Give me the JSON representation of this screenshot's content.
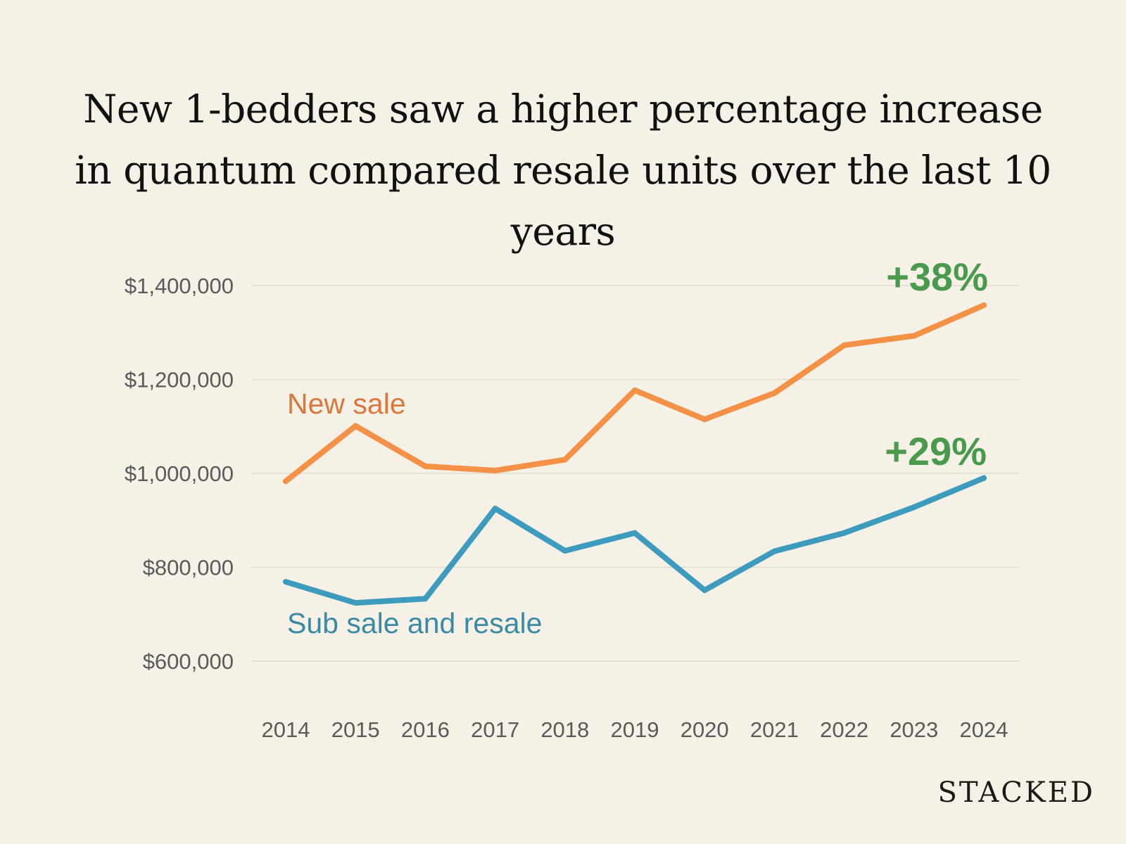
{
  "brand": "STACKED",
  "chart_data": {
    "type": "line",
    "title": "New 1-bedders saw a higher percentage increase in quantum compared resale units over the last 10 years",
    "xlabel": "",
    "ylabel": "",
    "x": [
      "2014",
      "2015",
      "2016",
      "2017",
      "2018",
      "2019",
      "2020",
      "2021",
      "2022",
      "2023",
      "2024"
    ],
    "ylim": [
      600000,
      1400000
    ],
    "yticks": [
      600000,
      800000,
      1000000,
      1200000,
      1400000
    ],
    "ytick_labels": [
      "$600,000",
      "$800,000",
      "$1,000,000",
      "$1,200,000",
      "$1,400,000"
    ],
    "grid": true,
    "legend": "none",
    "series": [
      {
        "name": "New sale",
        "color": "#f59147",
        "label_color": "#d9773c",
        "values": [
          983000,
          1101000,
          1015000,
          1006000,
          1029000,
          1177000,
          1115000,
          1171000,
          1273000,
          1293000,
          1358000
        ],
        "annotation": "+38%"
      },
      {
        "name": "Sub sale and resale",
        "color": "#3d9bbd",
        "label_color": "#3a8aa6",
        "values": [
          769000,
          724000,
          733000,
          925000,
          835000,
          873000,
          751000,
          834000,
          873000,
          928000,
          990000
        ],
        "annotation": "+29%"
      }
    ],
    "annotation_color": "#4a9a4d",
    "grid_color": "#dcd8cb"
  }
}
